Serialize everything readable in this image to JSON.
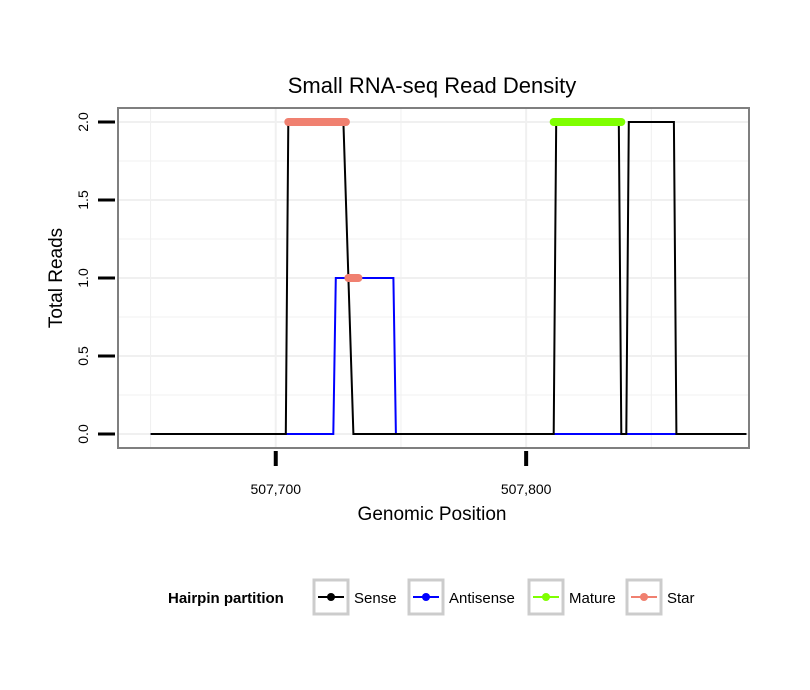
{
  "chart_data": {
    "type": "line",
    "title": "Small RNA-seq Read Density",
    "xlabel": "Genomic Position",
    "ylabel": "Total Reads",
    "xlim": [
      507637,
      507889
    ],
    "ylim": [
      -0.09,
      2.09
    ],
    "x_ticks": [
      507700,
      507800
    ],
    "x_tick_labels": [
      "507,700",
      "507,800"
    ],
    "y_ticks": [
      0,
      0.5,
      1,
      1.5,
      2
    ],
    "y_tick_labels": [
      "0.0",
      "0.5",
      "1.0",
      "1.5",
      "2.0"
    ],
    "grid": true,
    "legend": {
      "title": "Hairpin partition",
      "position": "bottom",
      "items": [
        {
          "name": "Sense",
          "color": "#000000"
        },
        {
          "name": "Antisense",
          "color": "#0000ff"
        },
        {
          "name": "Mature",
          "color": "#7fff00"
        },
        {
          "name": "Star",
          "color": "#f08070"
        }
      ]
    },
    "series": [
      {
        "name": "Sense",
        "color": "#000000",
        "x": [
          507650,
          507704,
          507705,
          507727,
          507731,
          507740,
          507811,
          507812,
          507837,
          507838,
          507840,
          507841,
          507859,
          507860,
          507888
        ],
        "y": [
          0,
          0,
          2,
          2,
          0,
          0,
          0,
          2,
          2,
          0,
          0,
          2,
          2,
          0,
          0
        ]
      },
      {
        "name": "Antisense",
        "color": "#0000ff",
        "x": [
          507650,
          507723,
          507724,
          507747,
          507748,
          507888
        ],
        "y": [
          0,
          0,
          1,
          1,
          0,
          0
        ]
      },
      {
        "name": "Mature",
        "color": "#7fff00",
        "x": [
          507811,
          507838
        ],
        "y": [
          2,
          2
        ]
      },
      {
        "name": "Star",
        "color": "#f08070",
        "segments": [
          {
            "x": [
              507705,
              507728
            ],
            "y": [
              2,
              2
            ]
          },
          {
            "x": [
              507729,
              507733
            ],
            "y": [
              1,
              1
            ]
          }
        ]
      }
    ]
  }
}
